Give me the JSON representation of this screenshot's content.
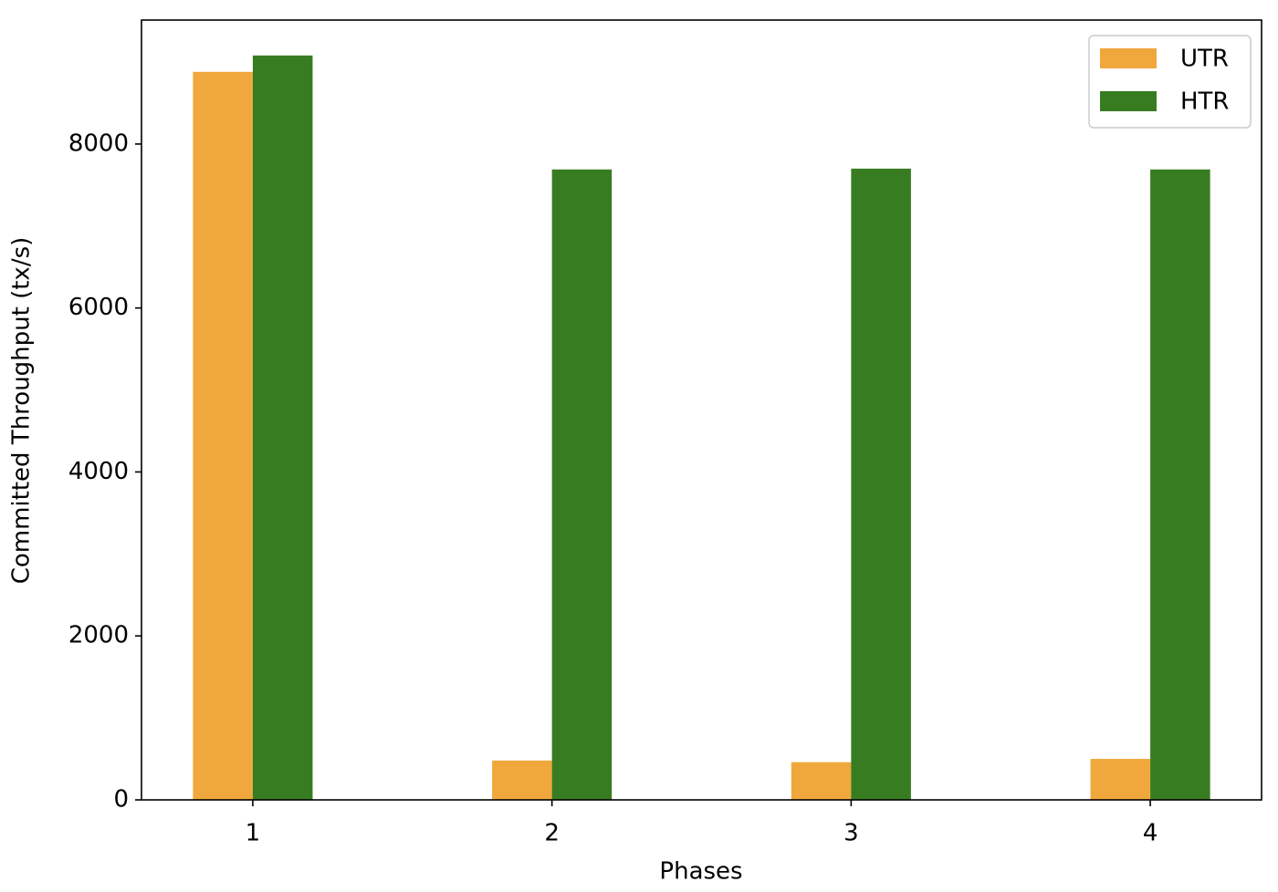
{
  "chart_data": {
    "type": "bar",
    "x_label": "Phases",
    "y_label": "Committed Throughput (tx/s)",
    "x": [
      1,
      2,
      3,
      4
    ],
    "xlim": [
      0.628,
      4.372
    ],
    "xticks": [
      1,
      2,
      3,
      4
    ],
    "ylim": [
      0,
      9512
    ],
    "yticks": [
      0,
      2000,
      4000,
      6000,
      8000
    ],
    "series": [
      {
        "name": "UTR",
        "color": "#f0a83c",
        "values": [
          8880,
          480,
          460,
          500
        ]
      },
      {
        "name": "HTR",
        "color": "#387c22",
        "values": [
          9080,
          7690,
          7700,
          7690
        ]
      }
    ],
    "grid": false,
    "legend": "upper-right"
  }
}
